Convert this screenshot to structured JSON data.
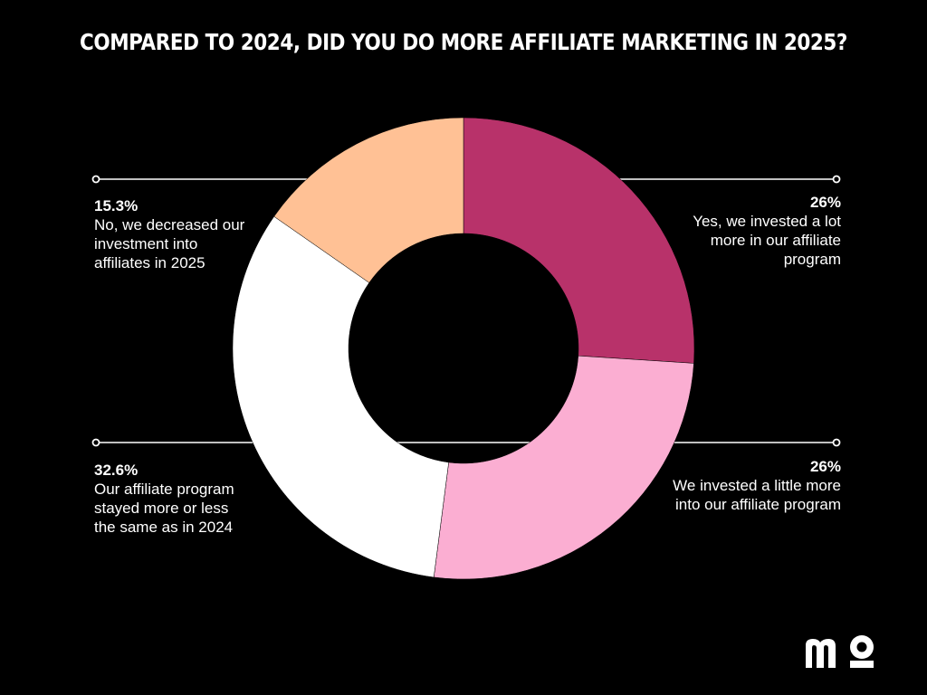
{
  "chart_data": {
    "type": "pie",
    "title": "COMPARED TO 2024, DID YOU DO MORE AFFILIATE MARKETING IN 2025?",
    "donut": true,
    "slices": [
      {
        "value": 26,
        "pct_label": "26%",
        "label": "Yes, we invested a lot more in our affiliate program",
        "color": "#b8326a",
        "label_side": "right-top"
      },
      {
        "value": 26,
        "pct_label": "26%",
        "label": "We invested a little more into our affiliate program",
        "color": "#fbaed2",
        "label_side": "right-bottom"
      },
      {
        "value": 32.6,
        "pct_label": "32.6%",
        "label": "Our affiliate program stayed more or less the same as in 2024",
        "color": "#ffffff",
        "label_side": "left-bottom"
      },
      {
        "value": 15.3,
        "pct_label": "15.3%",
        "label": "No, we decreased our investment into affiliates in 2025",
        "color": "#ffc195",
        "label_side": "left-top"
      }
    ]
  },
  "logo": {
    "text": "mo",
    "name": "brand-logo"
  },
  "colors": {
    "background": "#000000",
    "text": "#ffffff"
  }
}
